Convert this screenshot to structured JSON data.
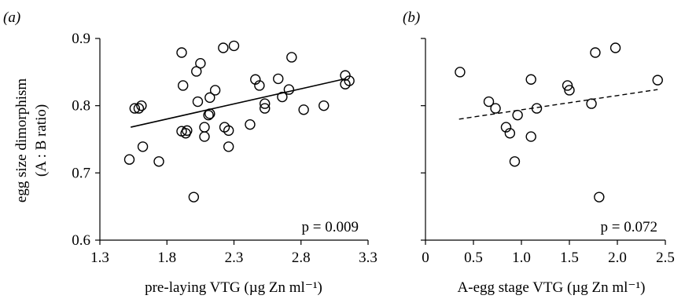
{
  "chart_data": [
    {
      "type": "scatter",
      "panel_label": "(a)",
      "xlabel": "pre-laying VTG (µg Zn ml⁻¹)",
      "ylabel": "egg size dimorphism",
      "ylabel_2": "(A : B ratio)",
      "p_text": "p = 0.009",
      "xlim": [
        1.3,
        3.3
      ],
      "ylim": [
        0.6,
        0.9
      ],
      "xticks": [
        "1.3",
        "1.8",
        "2.3",
        "2.8",
        "3.3"
      ],
      "yticks": [
        "0.6",
        "0.7",
        "0.8",
        "0.9"
      ],
      "trend_line": {
        "style": "solid",
        "x": [
          1.53,
          3.13
        ],
        "y": [
          0.768,
          0.84
        ]
      },
      "points": [
        {
          "x": 1.52,
          "y": 0.72
        },
        {
          "x": 1.56,
          "y": 0.796
        },
        {
          "x": 1.59,
          "y": 0.796
        },
        {
          "x": 1.61,
          "y": 0.8
        },
        {
          "x": 1.62,
          "y": 0.739
        },
        {
          "x": 1.74,
          "y": 0.717
        },
        {
          "x": 1.91,
          "y": 0.762
        },
        {
          "x": 1.91,
          "y": 0.879
        },
        {
          "x": 1.92,
          "y": 0.83
        },
        {
          "x": 1.94,
          "y": 0.759
        },
        {
          "x": 1.95,
          "y": 0.763
        },
        {
          "x": 2.0,
          "y": 0.664
        },
        {
          "x": 2.02,
          "y": 0.851
        },
        {
          "x": 2.03,
          "y": 0.806
        },
        {
          "x": 2.05,
          "y": 0.863
        },
        {
          "x": 2.08,
          "y": 0.754
        },
        {
          "x": 2.08,
          "y": 0.768
        },
        {
          "x": 2.11,
          "y": 0.786
        },
        {
          "x": 2.12,
          "y": 0.788
        },
        {
          "x": 2.12,
          "y": 0.812
        },
        {
          "x": 2.16,
          "y": 0.823
        },
        {
          "x": 2.22,
          "y": 0.886
        },
        {
          "x": 2.23,
          "y": 0.768
        },
        {
          "x": 2.26,
          "y": 0.763
        },
        {
          "x": 2.26,
          "y": 0.739
        },
        {
          "x": 2.3,
          "y": 0.889
        },
        {
          "x": 2.42,
          "y": 0.772
        },
        {
          "x": 2.46,
          "y": 0.839
        },
        {
          "x": 2.49,
          "y": 0.83
        },
        {
          "x": 2.53,
          "y": 0.803
        },
        {
          "x": 2.53,
          "y": 0.796
        },
        {
          "x": 2.63,
          "y": 0.84
        },
        {
          "x": 2.66,
          "y": 0.813
        },
        {
          "x": 2.71,
          "y": 0.824
        },
        {
          "x": 2.73,
          "y": 0.872
        },
        {
          "x": 2.82,
          "y": 0.794
        },
        {
          "x": 2.97,
          "y": 0.8
        },
        {
          "x": 3.13,
          "y": 0.845
        },
        {
          "x": 3.13,
          "y": 0.832
        },
        {
          "x": 3.16,
          "y": 0.837
        }
      ]
    },
    {
      "type": "scatter",
      "panel_label": "(b)",
      "xlabel": "A-egg stage VTG (µg Zn ml⁻¹)",
      "ylabel": "",
      "p_text": "p = 0.072",
      "xlim": [
        0,
        2.5
      ],
      "ylim": [
        0.6,
        0.9
      ],
      "xticks": [
        "0",
        "0.5",
        "1.0",
        "1.5",
        "2.0",
        "2.5"
      ],
      "yticks": [
        "",
        "",
        "",
        ""
      ],
      "trend_line": {
        "style": "dashed",
        "x": [
          0.35,
          2.42
        ],
        "y": [
          0.78,
          0.824
        ]
      },
      "points": [
        {
          "x": 0.36,
          "y": 0.85
        },
        {
          "x": 0.66,
          "y": 0.806
        },
        {
          "x": 0.73,
          "y": 0.796
        },
        {
          "x": 0.84,
          "y": 0.768
        },
        {
          "x": 0.88,
          "y": 0.759
        },
        {
          "x": 0.93,
          "y": 0.717
        },
        {
          "x": 0.96,
          "y": 0.786
        },
        {
          "x": 1.1,
          "y": 0.839
        },
        {
          "x": 1.1,
          "y": 0.754
        },
        {
          "x": 1.16,
          "y": 0.796
        },
        {
          "x": 1.48,
          "y": 0.83
        },
        {
          "x": 1.5,
          "y": 0.823
        },
        {
          "x": 1.73,
          "y": 0.803
        },
        {
          "x": 1.77,
          "y": 0.879
        },
        {
          "x": 1.81,
          "y": 0.664
        },
        {
          "x": 1.98,
          "y": 0.886
        },
        {
          "x": 2.42,
          "y": 0.838
        }
      ]
    }
  ]
}
